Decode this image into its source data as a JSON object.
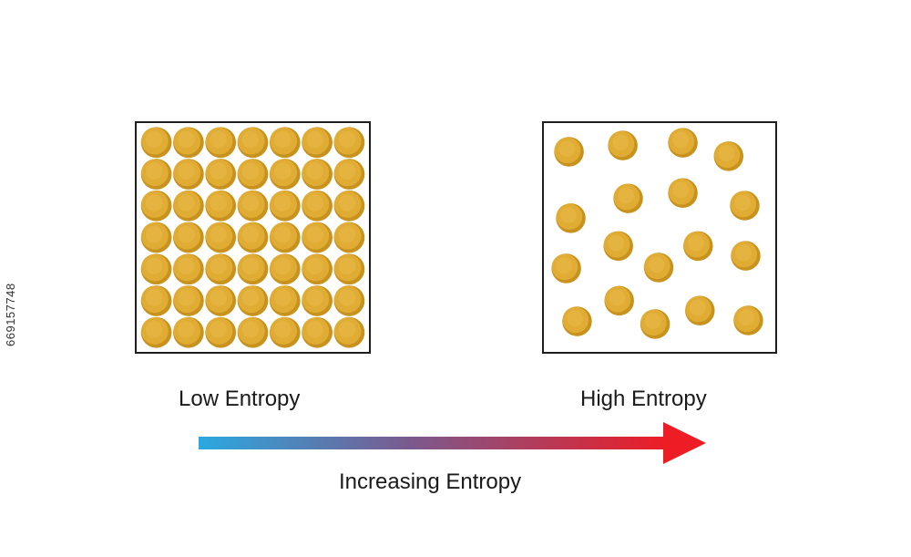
{
  "low_entropy": {
    "label": "Low Entropy",
    "grid_rows": 7,
    "grid_cols": 7
  },
  "high_entropy": {
    "label": "High Entropy",
    "particle_count": 18
  },
  "arrow": {
    "label": "Increasing Entropy",
    "gradient_start": "#2aa9e0",
    "gradient_mid": "#7a5a8e",
    "gradient_end": "#ee1c25"
  },
  "colors": {
    "particle_fill": "#e0ac33",
    "particle_shadow": "#c8921f",
    "particle_highlight": "#efc458",
    "box_border": "#1e1e1e"
  },
  "watermark": {
    "text": "669157748"
  }
}
